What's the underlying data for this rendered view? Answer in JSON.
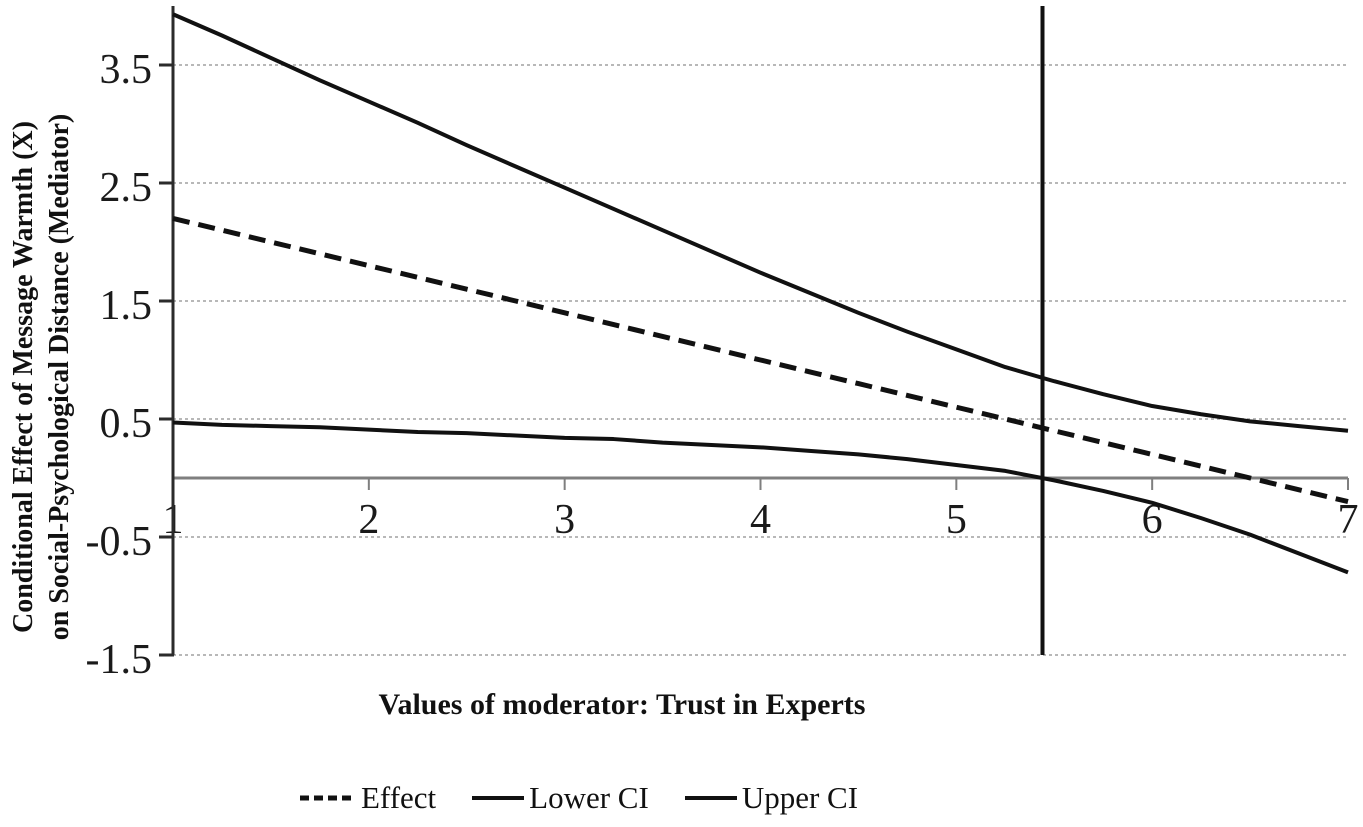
{
  "chart_data": {
    "type": "line",
    "title": "",
    "xlabel": "Values of moderator: Trust in Experts",
    "ylabel": [
      "Conditional Effect of Message Warmth (X)",
      "on Social-Psychological Distance (Mediator)"
    ],
    "x": [
      1,
      1.25,
      1.5,
      1.75,
      2,
      2.25,
      2.5,
      2.75,
      3,
      3.25,
      3.5,
      3.75,
      4,
      4.25,
      4.5,
      4.75,
      5,
      5.25,
      5.5,
      5.75,
      6,
      6.25,
      6.5,
      6.75,
      7
    ],
    "series": [
      {
        "name": "Effect",
        "style": "dashed",
        "values": [
          2.2,
          2.1,
          2.0,
          1.9,
          1.8,
          1.7,
          1.6,
          1.5,
          1.4,
          1.3,
          1.2,
          1.1,
          1.0,
          0.9,
          0.8,
          0.7,
          0.6,
          0.5,
          0.4,
          0.3,
          0.2,
          0.1,
          0.0,
          -0.1,
          -0.2
        ]
      },
      {
        "name": "Lower CI",
        "style": "solid",
        "values": [
          0.47,
          0.45,
          0.44,
          0.43,
          0.41,
          0.39,
          0.38,
          0.36,
          0.34,
          0.33,
          0.3,
          0.28,
          0.26,
          0.23,
          0.2,
          0.16,
          0.11,
          0.06,
          -0.02,
          -0.11,
          -0.21,
          -0.34,
          -0.48,
          -0.64,
          -0.8
        ]
      },
      {
        "name": "Upper CI",
        "style": "solid",
        "values": [
          3.93,
          3.75,
          3.56,
          3.37,
          3.19,
          3.01,
          2.82,
          2.64,
          2.46,
          2.28,
          2.1,
          1.92,
          1.74,
          1.57,
          1.4,
          1.24,
          1.09,
          0.94,
          0.82,
          0.71,
          0.61,
          0.54,
          0.48,
          0.44,
          0.4
        ]
      }
    ],
    "x_ticks": [
      1,
      2,
      3,
      4,
      5,
      6,
      7
    ],
    "y_ticks": [
      3.5,
      2.5,
      1.5,
      0.5,
      -0.5,
      -1.5
    ],
    "xlim": [
      1,
      7
    ],
    "ylim": [
      -1.5,
      4.0
    ],
    "vertical_line_x": 5.44,
    "zero_line": true,
    "grid": "horizontal-dotted",
    "legend_position": "bottom",
    "colors": {
      "series": "#111111",
      "grid": "#b8b8b8",
      "zero_line": "#7f7f7f",
      "axis": "#2b2b2b",
      "background": "#ffffff"
    }
  }
}
